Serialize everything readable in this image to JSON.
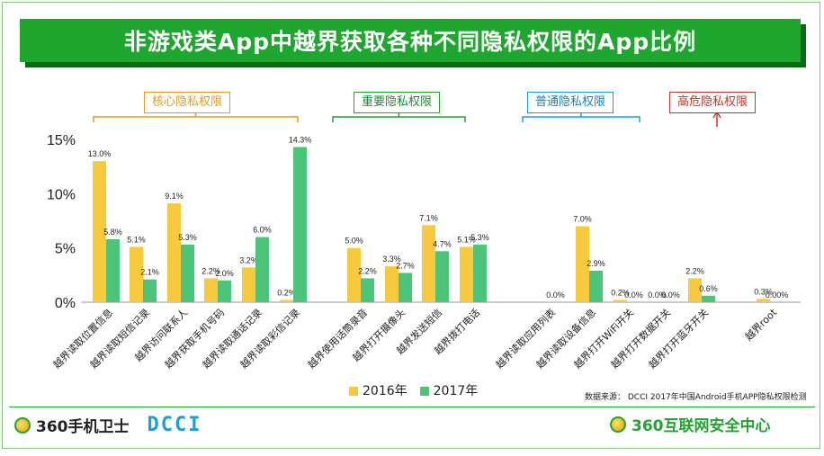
{
  "title": "非游戏类App中越界获取各种不同隐私权限的App比例",
  "groups": [
    {
      "label": "核心隐私权限",
      "color": "#e49b1e",
      "text_color": "#e49b1e"
    },
    {
      "label": "重要隐私权限",
      "color": "#1fa62e",
      "text_color": "#1a8a3a"
    },
    {
      "label": "普通隐私权限",
      "color": "#1aa0d8",
      "text_color": "#1a80c0"
    },
    {
      "label": "高危隐私权限",
      "color": "#c0392b",
      "text_color": "#c0392b"
    }
  ],
  "chart_data": {
    "type": "bar",
    "categories": [
      "越界读取位置信息",
      "越界读取短信记录",
      "越界访问联系人",
      "越界获取手机号码",
      "越界读取通话记录",
      "越界读取彩信记录",
      "越界使用话筒录音",
      "越界打开摄像头",
      "越界发送短信",
      "越界拨打电话",
      "越界读取应用列表",
      "越界读取设备信息",
      "越界打开WiFi开关",
      "越界打开数据开关",
      "越界打开蓝牙开关",
      "越界root"
    ],
    "series": [
      {
        "name": "2016年",
        "color": "#f7c93c",
        "values": [
          13.0,
          5.1,
          9.1,
          2.2,
          3.2,
          0.2,
          5.0,
          3.3,
          7.1,
          5.1,
          null,
          7.0,
          0.2,
          0.0,
          2.2,
          0.3
        ]
      },
      {
        "name": "2017年",
        "color": "#4cc47a",
        "values": [
          5.8,
          2.1,
          5.3,
          2.0,
          6.0,
          14.3,
          2.2,
          2.7,
          4.7,
          5.3,
          0.0,
          2.9,
          0.0,
          0.0,
          0.6,
          0.0
        ]
      }
    ],
    "value_labels": {
      "2016年": [
        "13.0%",
        "5.1%",
        "9.1%",
        "2.2%",
        "3.2%",
        "0.2%",
        "5.0%",
        "3.3%",
        "7.1%",
        "5.1%",
        "",
        "7.0%",
        "0.2%",
        "0.0%",
        "2.2%",
        "0.3%"
      ],
      "2017年": [
        "5.8%",
        "2.1%",
        "5.3%",
        "2.0%",
        "6.0%",
        "14.3%",
        "2.2%",
        "2.7%",
        "4.7%",
        "5.3%",
        "0.0%",
        "2.9%",
        "0.0%",
        "0.0%",
        "0.6%",
        "0.00%"
      ]
    },
    "y_ticks": [
      "0%",
      "5%",
      "10%",
      "15%"
    ],
    "ylim": [
      0,
      15
    ],
    "legend_position": "bottom"
  },
  "source": "数据来源： DCCI 2017年中国Android手机APP隐私权限检测",
  "footer": {
    "left_brand": "360手机卫士",
    "left_partner": "DCCI",
    "right_brand": "360互联网安全中心"
  }
}
